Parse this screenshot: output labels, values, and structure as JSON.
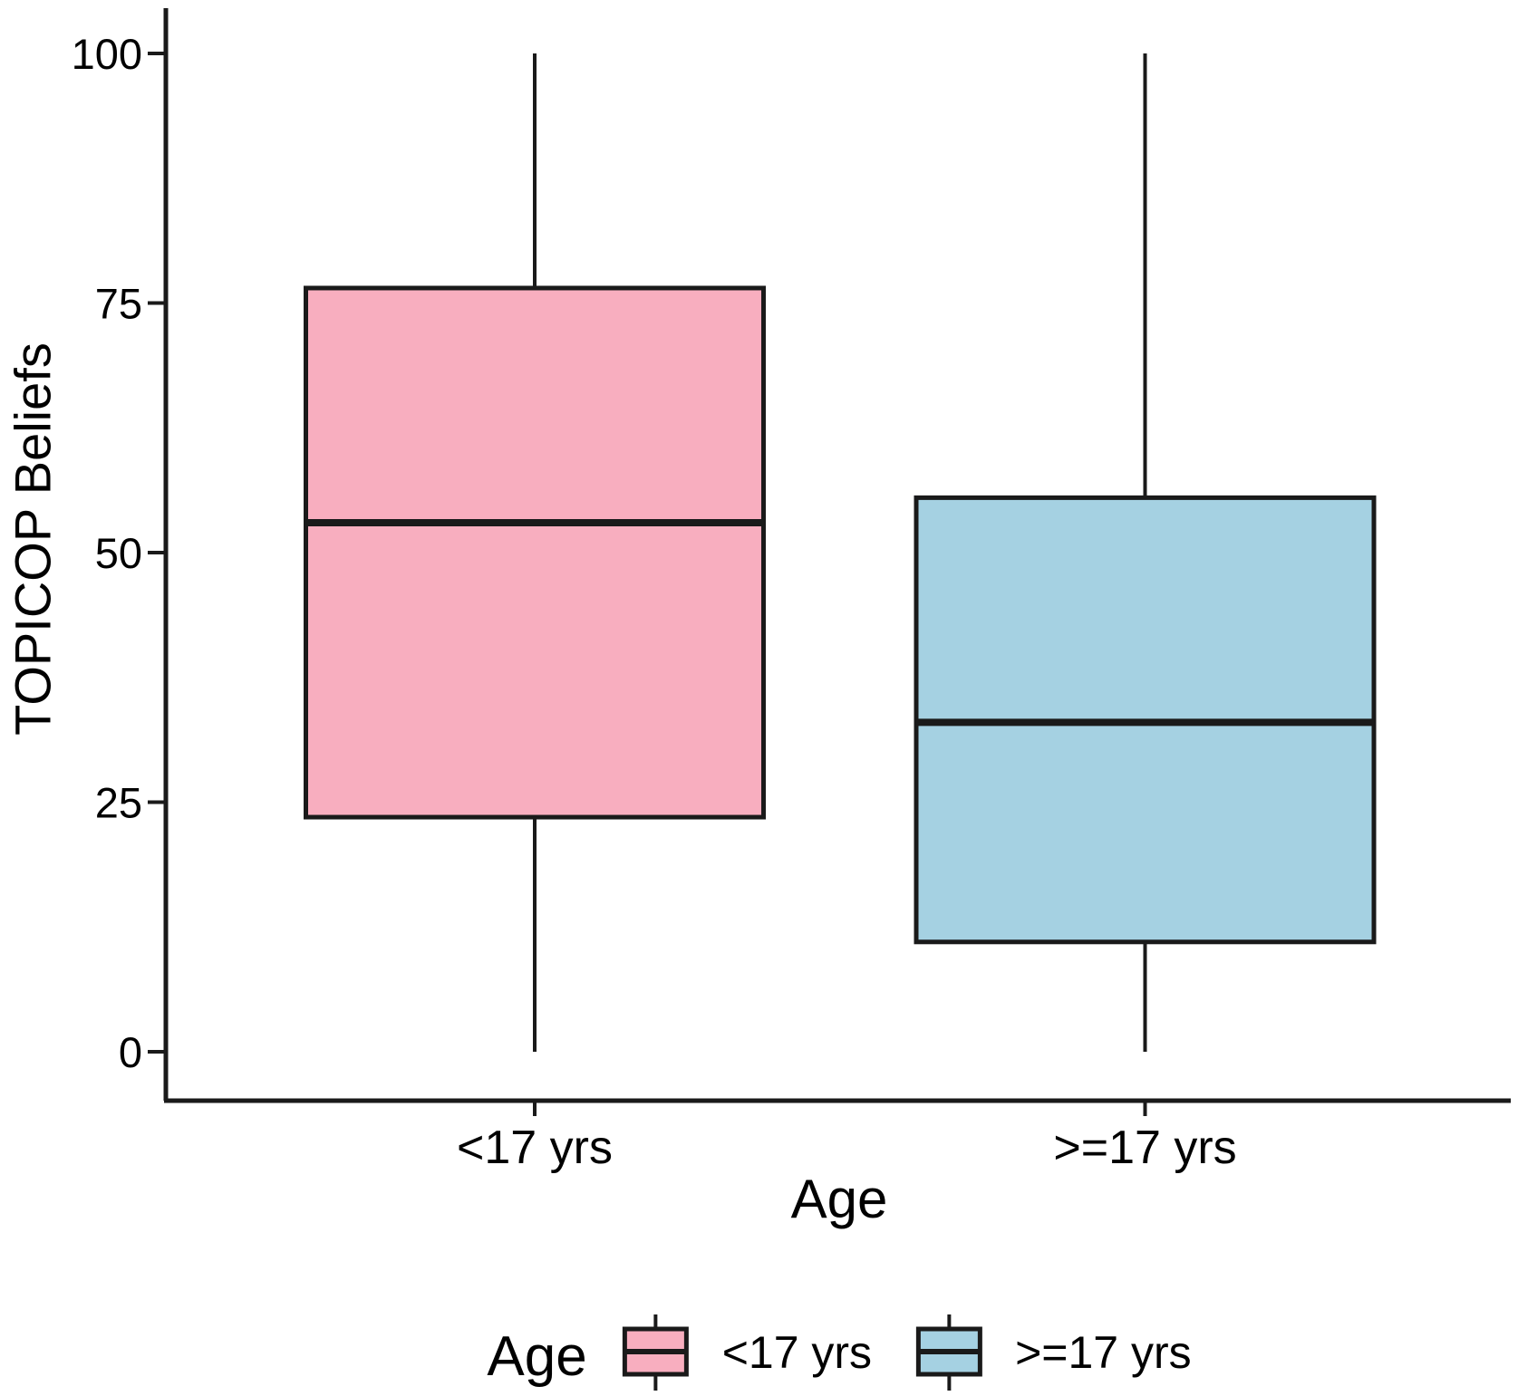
{
  "chart_data": {
    "type": "boxplot",
    "title": "",
    "xlabel": "Age",
    "ylabel": "TOPICOP Beliefs",
    "ylim": [
      0,
      100
    ],
    "yticks": [
      0,
      25,
      50,
      75,
      100
    ],
    "grid": false,
    "categories": [
      "<17 yrs",
      ">=17 yrs"
    ],
    "series": [
      {
        "name": "<17 yrs",
        "color": "#F8AEBF",
        "whisker_low": 0,
        "q1": 23.5,
        "median": 53,
        "q3": 76.5,
        "whisker_high": 100
      },
      {
        "name": ">=17 yrs",
        "color": "#A5D1E2",
        "whisker_low": 0,
        "q1": 11,
        "median": 33,
        "q3": 55.5,
        "whisker_high": 100
      }
    ],
    "legend": {
      "title": "Age",
      "position": "bottom"
    },
    "stroke_color": "#1A1A1A",
    "axis_color": "#1A1A1A",
    "text_color": "#000000"
  }
}
